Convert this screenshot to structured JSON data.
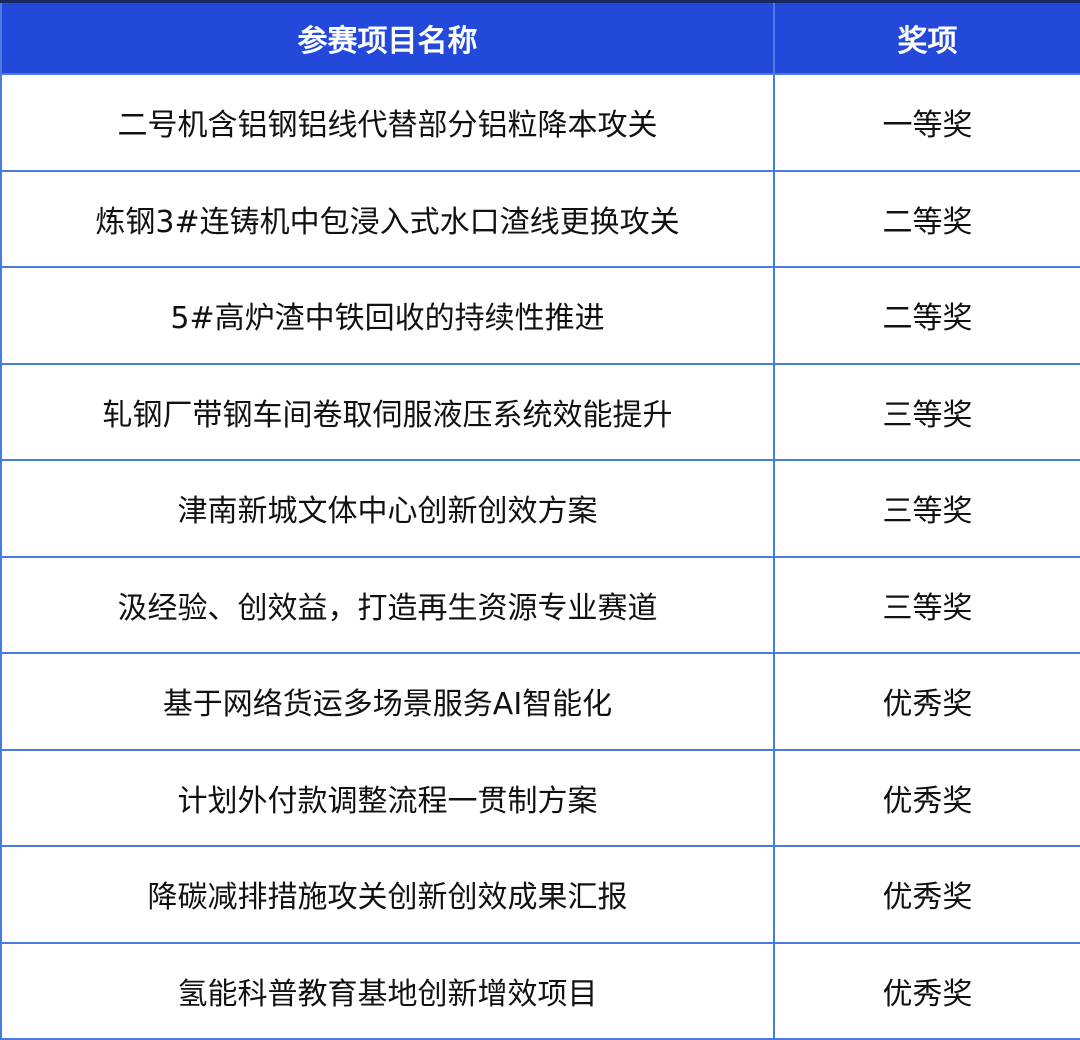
{
  "table": {
    "headers": [
      "参赛项目名称",
      "奖项"
    ],
    "rows": [
      [
        "二号机含铝钢铝线代替部分铝粒降本攻关",
        "一等奖"
      ],
      [
        "炼钢3#连铸机中包浸入式水口渣线更换攻关",
        "二等奖"
      ],
      [
        "5#高炉渣中铁回收的持续性推进",
        "二等奖"
      ],
      [
        "轧钢厂带钢车间卷取伺服液压系统效能提升",
        "三等奖"
      ],
      [
        "津南新城文体中心创新创效方案",
        "三等奖"
      ],
      [
        "汲经验、创效益，打造再生资源专业赛道",
        "三等奖"
      ],
      [
        "基于网络货运多场景服务AI智能化",
        "优秀奖"
      ],
      [
        "计划外付款调整流程一贯制方案",
        "优秀奖"
      ],
      [
        "降碳减排措施攻关创新创效成果汇报",
        "优秀奖"
      ],
      [
        "氢能科普教育基地创新增效项目",
        "优秀奖"
      ]
    ]
  },
  "colors": {
    "header_bg": "#2249d9",
    "border": "#4a7be0",
    "header_text": "#ffffff"
  }
}
